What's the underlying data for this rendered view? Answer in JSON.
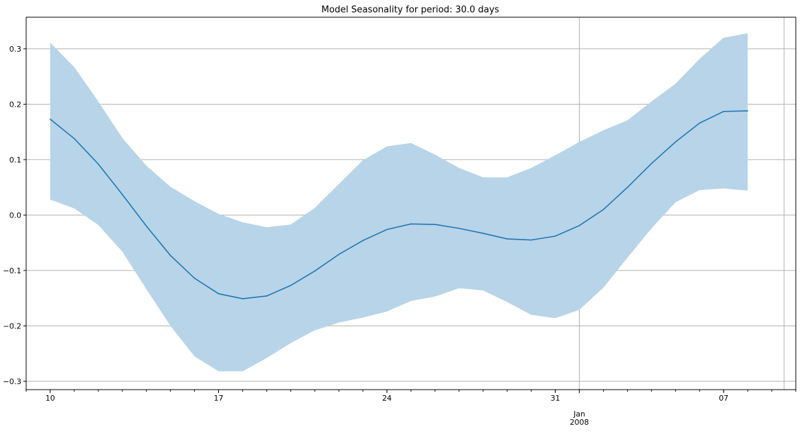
{
  "chart_data": {
    "type": "line",
    "title": "Model Seasonality for period: 30.0 days",
    "xlabel": "",
    "ylabel": "",
    "x_axis_type": "date",
    "x": [
      "2007-12-10",
      "2007-12-11",
      "2007-12-12",
      "2007-12-13",
      "2007-12-14",
      "2007-12-15",
      "2007-12-16",
      "2007-12-17",
      "2007-12-18",
      "2007-12-19",
      "2007-12-20",
      "2007-12-21",
      "2007-12-22",
      "2007-12-23",
      "2007-12-24",
      "2007-12-25",
      "2007-12-26",
      "2007-12-27",
      "2007-12-28",
      "2007-12-29",
      "2007-12-30",
      "2007-12-31",
      "2008-01-01",
      "2008-01-02",
      "2008-01-03",
      "2008-01-04",
      "2008-01-05",
      "2008-01-06",
      "2008-01-07",
      "2008-01-08"
    ],
    "xlim": [
      "2007-12-09",
      "2008-01-10"
    ],
    "ylim": [
      -0.315,
      0.357
    ],
    "yticks": [
      -0.3,
      -0.2,
      -0.1,
      0.0,
      0.1,
      0.2,
      0.3
    ],
    "ytick_labels": [
      "−0.3",
      "−0.2",
      "−0.1",
      "0.0",
      "0.1",
      "0.2",
      "0.3"
    ],
    "xtick_labels": [
      {
        "date": "2007-12-10",
        "label": "10"
      },
      {
        "date": "2007-12-17",
        "label": "17"
      },
      {
        "date": "2007-12-24",
        "label": "24"
      },
      {
        "date": "2007-12-31",
        "label": "31"
      },
      {
        "date": "2008-01-01",
        "label": "Jan\n2008"
      },
      {
        "date": "2008-01-07",
        "label": "07"
      }
    ],
    "grid": true,
    "series": [
      {
        "values": [
          0.173,
          0.138,
          0.092,
          0.037,
          -0.02,
          -0.073,
          -0.114,
          -0.142,
          -0.151,
          -0.146,
          -0.127,
          -0.101,
          -0.071,
          -0.046,
          -0.026,
          -0.016,
          -0.017,
          -0.024,
          -0.033,
          -0.043,
          -0.045,
          -0.038,
          -0.019,
          0.01,
          0.05,
          0.093,
          0.132,
          0.166,
          0.187,
          0.188
        ],
        "lower": [
          0.028,
          0.012,
          -0.018,
          -0.066,
          -0.134,
          -0.2,
          -0.255,
          -0.282,
          -0.282,
          -0.258,
          -0.231,
          -0.208,
          -0.194,
          -0.185,
          -0.174,
          -0.155,
          -0.147,
          -0.132,
          -0.136,
          -0.157,
          -0.18,
          -0.186,
          -0.171,
          -0.131,
          -0.077,
          -0.024,
          0.023,
          0.045,
          0.048,
          0.044
        ],
        "upper": [
          0.311,
          0.267,
          0.205,
          0.139,
          0.089,
          0.051,
          0.025,
          0.002,
          -0.013,
          -0.022,
          -0.017,
          0.013,
          0.056,
          0.099,
          0.124,
          0.13,
          0.109,
          0.085,
          0.068,
          0.068,
          0.085,
          0.108,
          0.132,
          0.153,
          0.171,
          0.205,
          0.237,
          0.282,
          0.32,
          0.328
        ]
      }
    ],
    "colors": {
      "line": "#1f77b4",
      "band": "#b8d4e8",
      "grid": "#b0b0b0"
    }
  }
}
